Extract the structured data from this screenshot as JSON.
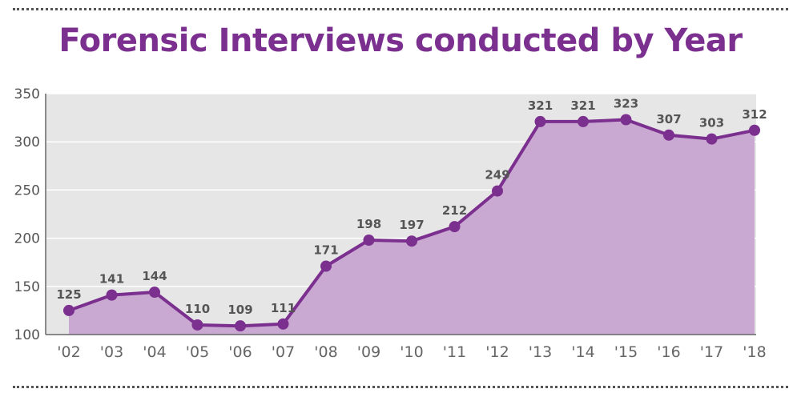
{
  "title": "Forensic Interviews conducted by Year",
  "colors": {
    "title": "#7b2f8e",
    "line": "#7b2f8e",
    "area": "#c9a8d1",
    "plot_background": "#e6e6e6",
    "gridline": "#ffffff",
    "text": "#555555"
  },
  "chart_data": {
    "type": "area",
    "title": "Forensic Interviews conducted by Year",
    "xlabel": "",
    "ylabel": "",
    "categories": [
      "'02",
      "'03",
      "'04",
      "'05",
      "'06",
      "'07",
      "'08",
      "'09",
      "'10",
      "'11",
      "'12",
      "'13",
      "'14",
      "'15",
      "'16",
      "'17",
      "'18"
    ],
    "values": [
      125,
      141,
      144,
      110,
      109,
      111,
      171,
      198,
      197,
      212,
      249,
      321,
      321,
      323,
      307,
      303,
      312
    ],
    "data_labels": [
      "125",
      "141",
      "144",
      "110",
      "109",
      "111",
      "171",
      "198",
      "197",
      "212",
      "249",
      "321",
      "321",
      "323",
      "307",
      "303",
      "312"
    ],
    "ylim": [
      100,
      350
    ],
    "yticks": [
      100,
      150,
      200,
      250,
      300,
      350
    ],
    "ytick_labels": [
      "100",
      "150",
      "200",
      "250",
      "300",
      "350"
    ],
    "grid": true,
    "legend": "none",
    "markers": true
  }
}
